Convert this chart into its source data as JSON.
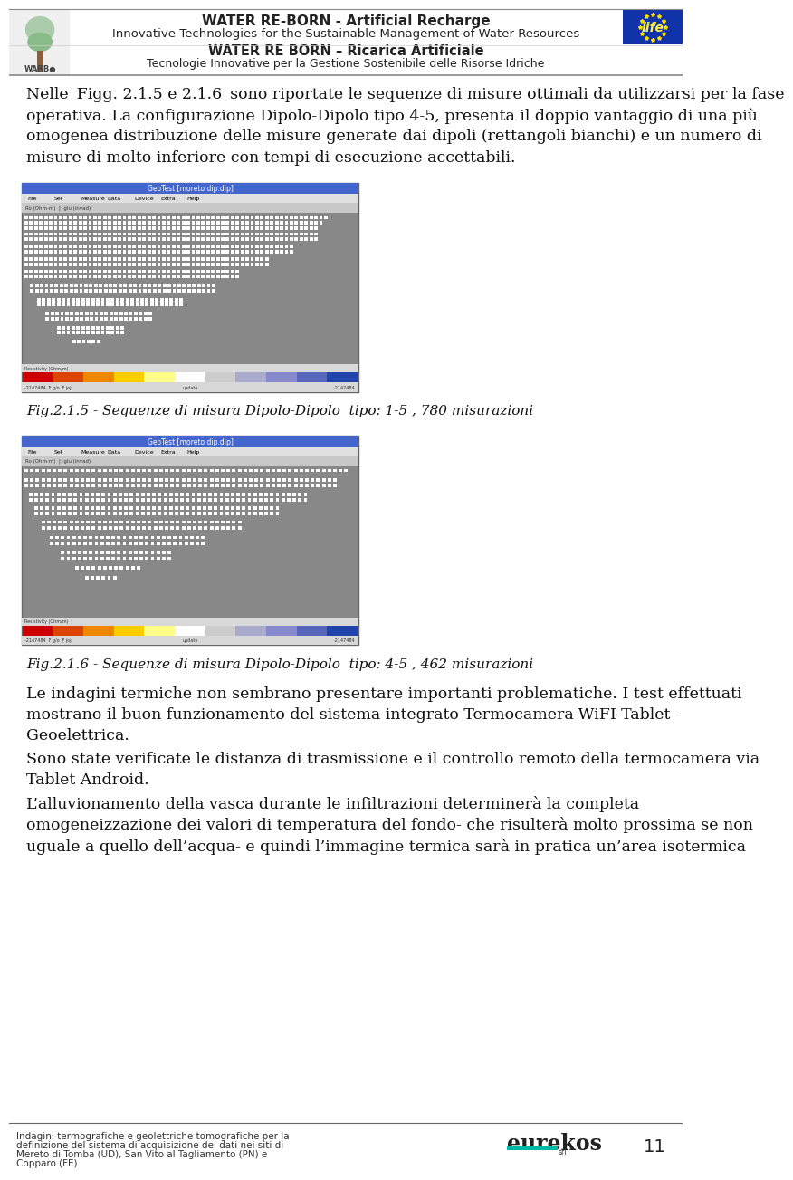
{
  "page_width": 9.6,
  "page_height": 16.67,
  "bg_color": "#ffffff",
  "header_line1": "WATER RE-BORN - Artificial Recharge",
  "header_line2": "Innovative Technologies for the Sustainable Management of Water Resources",
  "header_line3": "WATER RE BORN – Ricarica Artificiale",
  "header_line4": "Tecnologie Innovative per la Gestione Sostenibile delle Risorse Idriche",
  "fig1_caption": "Fig.2.1.5 - Sequenze di misura Dipolo-Dipolo  tipo: 1-5 , 780 misurazioni",
  "fig2_caption": "Fig.2.1.6 - Sequenze di misura Dipolo-Dipolo  tipo: 4-5 , 462 misurazioni",
  "body_text_p1_lines": [
    "Nelle  Figg. 2.1.5 e 2.1.6  sono riportate le sequenze di misure ottimali da utilizzarsi per la fase",
    "operativa. La configurazione Dipolo-Dipolo tipo 4-5, presenta il doppio vantaggio di una più",
    "omogenea distribuzione delle misure generate dai dipoli (rettangoli bianchi) e un numero di",
    "misure di molto inferiore con tempi di esecuzione accettabili."
  ],
  "body_text_p2_lines": [
    "Le indagini termiche non sembrano presentare importanti problematiche. I test effettuati",
    "mostrano il buon funzionamento del sistema integrato Termocamera-WiFI-Tablet-",
    "Geoelettrica.",
    "Sono state verificate le distanza di trasmissione e il controllo remoto della termocamera via",
    "Tablet Android.",
    "L’alluvionamento della vasca durante le infiltrazioni determinerà la completa",
    "omogeneizzazione dei valori di temperatura del fondo- che risulterà molto prossima se non",
    "uguale a quello dell’acqua- e quindi l’immagine termica sarà in pratica un’area isotermica"
  ],
  "footer_left": "Indagini termografiche e geolettriche tomografiche per la\ndefinizione del sistema di acquisizione dei dati nei siti di\nMereto di Tomba (UD), San Vito al Tagliamento (PN) e\nCopparo (FE)",
  "footer_logo_text": "eurekos",
  "footer_logo_sub": "srl",
  "footer_page_num": "11",
  "footer_teal_color": "#00b8a8",
  "text_color": "#111111",
  "caption_color": "#111111",
  "header_text_color": "#222222",
  "colorbar_colors": [
    "#cc0000",
    "#dd4400",
    "#ee8800",
    "#ffcc00",
    "#ffff88",
    "#ffffff",
    "#cccccc",
    "#aaaacc",
    "#8888cc",
    "#5566bb",
    "#2244aa"
  ],
  "geotest_title_bg": "#4466cc",
  "geotest_menu_bg": "#e0e0e0",
  "geotest_content_bg": "#888888",
  "geotest_toolbar_bg": "#c8c8c8",
  "geotest_statusbar_bg": "#d8d8d8",
  "dot_color": "#ffffff",
  "dot2_color": "#333333"
}
